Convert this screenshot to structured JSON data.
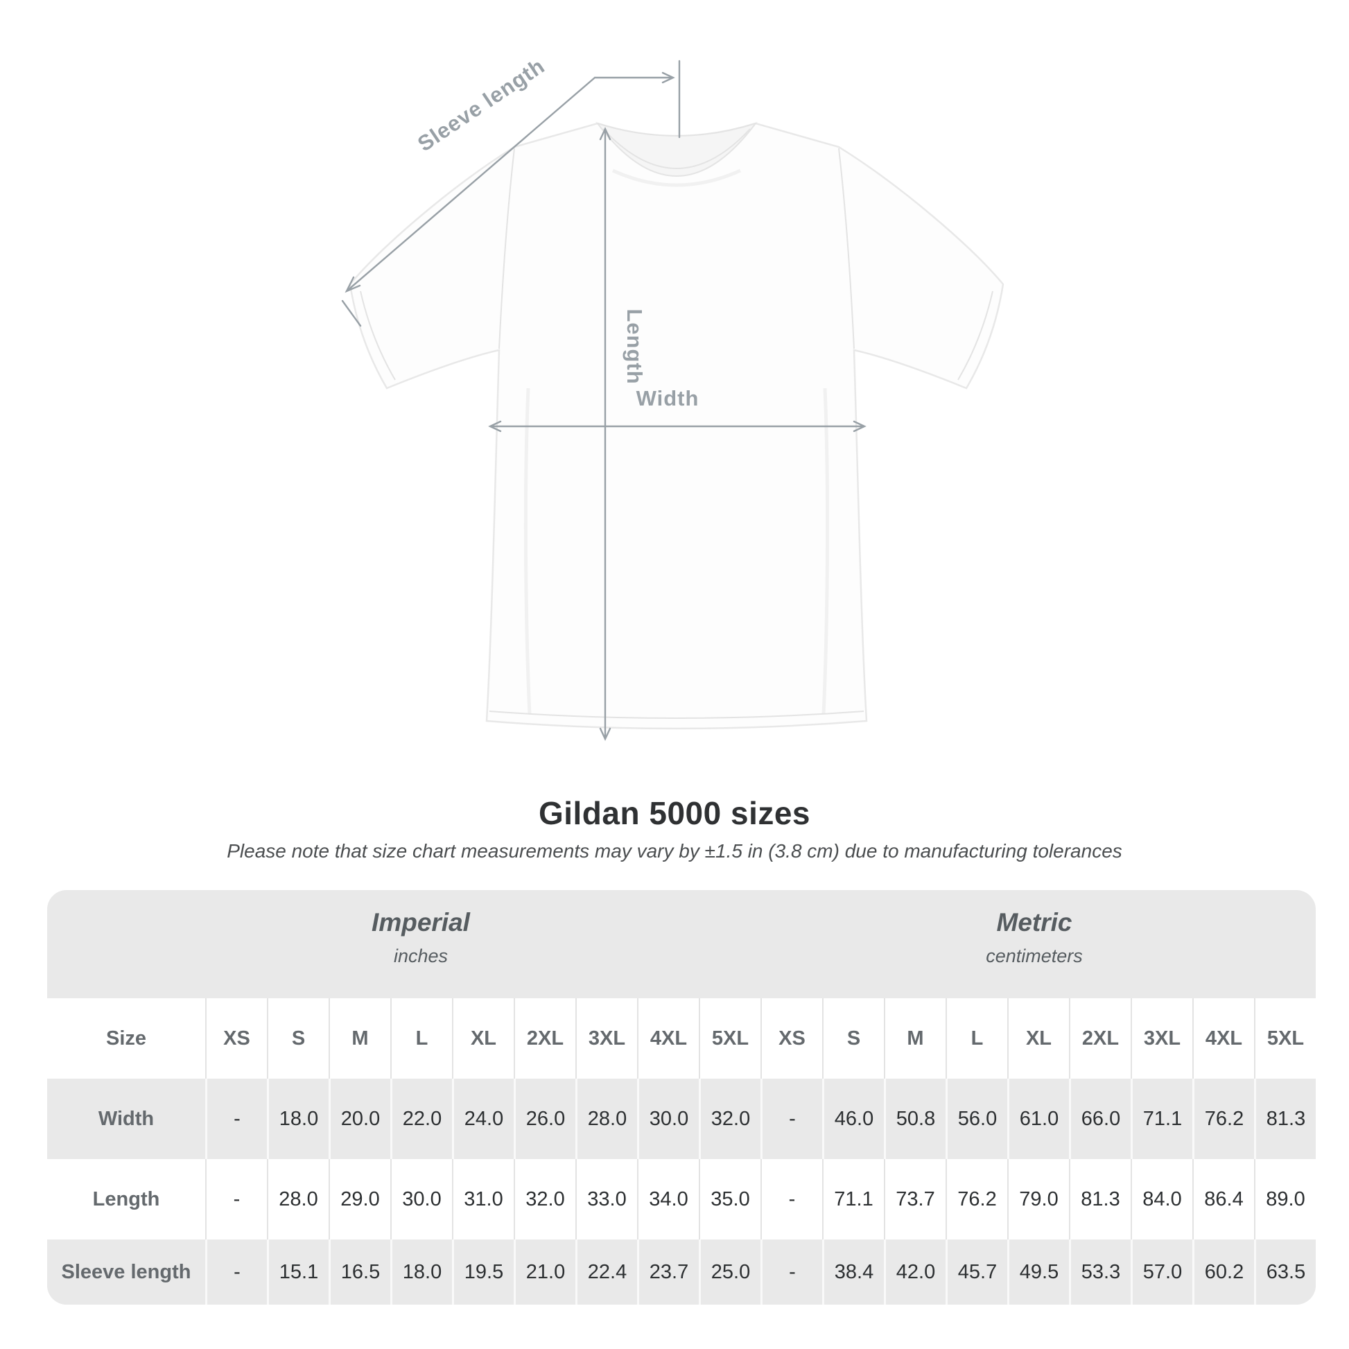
{
  "diagram": {
    "sleeve_length_label": "Sleeve length",
    "length_label": "Length",
    "width_label": "Width"
  },
  "title": "Gildan 5000 sizes",
  "subtitle": "Please note that size chart measurements may vary by ±1.5 in (3.8 cm) due to manufacturing tolerances",
  "table": {
    "size_label": "Size",
    "unit_groups": [
      {
        "name": "Imperial",
        "unit": "inches"
      },
      {
        "name": "Metric",
        "unit": "centimeters"
      }
    ],
    "sizes": [
      "XS",
      "S",
      "M",
      "L",
      "XL",
      "2XL",
      "3XL",
      "4XL",
      "5XL"
    ],
    "rows": [
      {
        "label": "Width",
        "imperial": [
          "-",
          "18.0",
          "20.0",
          "22.0",
          "24.0",
          "26.0",
          "28.0",
          "30.0",
          "32.0"
        ],
        "metric": [
          "-",
          "46.0",
          "50.8",
          "56.0",
          "61.0",
          "66.0",
          "71.1",
          "76.2",
          "81.3"
        ]
      },
      {
        "label": "Length",
        "imperial": [
          "-",
          "28.0",
          "29.0",
          "30.0",
          "31.0",
          "32.0",
          "33.0",
          "34.0",
          "35.0"
        ],
        "metric": [
          "-",
          "71.1",
          "73.7",
          "76.2",
          "79.0",
          "81.3",
          "84.0",
          "86.4",
          "89.0"
        ]
      },
      {
        "label": "Sleeve length",
        "imperial": [
          "-",
          "15.1",
          "16.5",
          "18.0",
          "19.5",
          "21.0",
          "22.4",
          "23.7",
          "25.0"
        ],
        "metric": [
          "-",
          "38.4",
          "42.0",
          "45.7",
          "49.5",
          "53.3",
          "57.0",
          "60.2",
          "63.5"
        ]
      }
    ]
  },
  "colors": {
    "measure_line": "#98a0a6",
    "title_text": "#2f3133",
    "subtitle_text": "#4b4e50",
    "table_bg": "#e9e9e9",
    "row_alt_bg": "#e9e9e9",
    "header_text": "#565c60",
    "label_text": "#64696d",
    "value_text": "#2c2f31",
    "shirt_outline": "#e8e8e8",
    "shirt_fill": "#fdfdfd"
  }
}
